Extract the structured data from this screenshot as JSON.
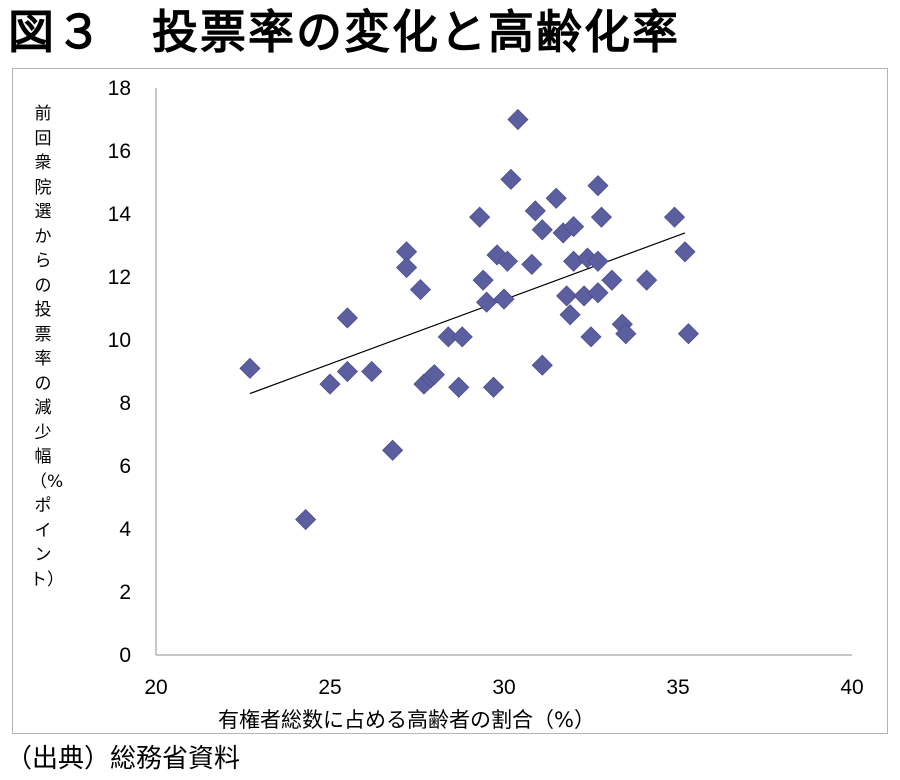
{
  "title": "図３　投票率の変化と高齢化率",
  "source": "（出典）総務省資料",
  "chart_data": {
    "type": "scatter",
    "xlabel": "有権者総数に占める高齢者の割合（%）",
    "ylabel": "前回衆院選からの投票率の減少幅（%ポイント）",
    "xlim": [
      20,
      40
    ],
    "ylim": [
      0,
      18
    ],
    "x_ticks": [
      "20",
      "25",
      "30",
      "35",
      "40"
    ],
    "y_ticks": [
      "0",
      "2",
      "4",
      "6",
      "8",
      "10",
      "12",
      "14",
      "16",
      "18"
    ],
    "grid": false,
    "marker_color": "#5b5fa0",
    "trendline": {
      "x": [
        22.7,
        35.2
      ],
      "y": [
        8.3,
        13.4
      ]
    },
    "points": [
      {
        "x": 22.7,
        "y": 9.1
      },
      {
        "x": 24.3,
        "y": 4.3
      },
      {
        "x": 25.0,
        "y": 8.6
      },
      {
        "x": 25.5,
        "y": 9.0
      },
      {
        "x": 25.5,
        "y": 10.7
      },
      {
        "x": 26.2,
        "y": 9.0
      },
      {
        "x": 26.8,
        "y": 6.5
      },
      {
        "x": 27.2,
        "y": 12.8
      },
      {
        "x": 27.2,
        "y": 12.3
      },
      {
        "x": 27.6,
        "y": 11.6
      },
      {
        "x": 27.7,
        "y": 8.6
      },
      {
        "x": 27.9,
        "y": 8.8
      },
      {
        "x": 28.0,
        "y": 8.9
      },
      {
        "x": 28.4,
        "y": 10.1
      },
      {
        "x": 28.7,
        "y": 8.5
      },
      {
        "x": 28.8,
        "y": 10.1
      },
      {
        "x": 29.3,
        "y": 13.9
      },
      {
        "x": 29.4,
        "y": 11.9
      },
      {
        "x": 29.5,
        "y": 11.2
      },
      {
        "x": 29.7,
        "y": 8.5
      },
      {
        "x": 29.8,
        "y": 12.7
      },
      {
        "x": 30.0,
        "y": 11.3
      },
      {
        "x": 30.1,
        "y": 12.5
      },
      {
        "x": 30.2,
        "y": 15.1
      },
      {
        "x": 30.4,
        "y": 17.0
      },
      {
        "x": 30.8,
        "y": 12.4
      },
      {
        "x": 30.9,
        "y": 14.1
      },
      {
        "x": 31.1,
        "y": 9.2
      },
      {
        "x": 31.1,
        "y": 13.5
      },
      {
        "x": 31.5,
        "y": 14.5
      },
      {
        "x": 31.7,
        "y": 13.4
      },
      {
        "x": 31.8,
        "y": 11.4
      },
      {
        "x": 31.9,
        "y": 10.8
      },
      {
        "x": 32.0,
        "y": 13.6
      },
      {
        "x": 32.0,
        "y": 12.5
      },
      {
        "x": 32.3,
        "y": 11.4
      },
      {
        "x": 32.4,
        "y": 12.6
      },
      {
        "x": 32.5,
        "y": 10.1
      },
      {
        "x": 32.7,
        "y": 14.9
      },
      {
        "x": 32.7,
        "y": 12.5
      },
      {
        "x": 32.7,
        "y": 11.5
      },
      {
        "x": 32.8,
        "y": 13.9
      },
      {
        "x": 33.1,
        "y": 11.9
      },
      {
        "x": 33.4,
        "y": 10.5
      },
      {
        "x": 33.5,
        "y": 10.2
      },
      {
        "x": 34.1,
        "y": 11.9
      },
      {
        "x": 34.9,
        "y": 13.9
      },
      {
        "x": 35.2,
        "y": 12.8
      },
      {
        "x": 35.3,
        "y": 10.2
      }
    ]
  }
}
